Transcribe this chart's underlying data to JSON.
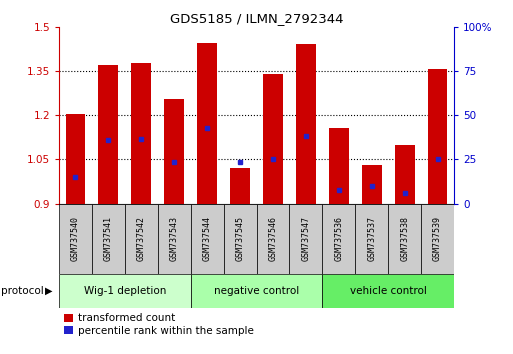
{
  "title": "GDS5185 / ILMN_2792344",
  "samples": [
    "GSM737540",
    "GSM737541",
    "GSM737542",
    "GSM737543",
    "GSM737544",
    "GSM737545",
    "GSM737546",
    "GSM737547",
    "GSM737536",
    "GSM737537",
    "GSM737538",
    "GSM737539"
  ],
  "bar_heights": [
    1.205,
    1.37,
    1.375,
    1.255,
    1.445,
    1.02,
    1.34,
    1.44,
    1.155,
    1.03,
    1.1,
    1.355
  ],
  "blue_positions": [
    0.99,
    1.115,
    1.12,
    1.04,
    1.155,
    1.04,
    1.05,
    1.13,
    0.945,
    0.96,
    0.935,
    1.05
  ],
  "bar_bottom": 0.9,
  "ylim_left": [
    0.9,
    1.5
  ],
  "ylim_right": [
    0,
    100
  ],
  "yticks_left": [
    0.9,
    1.05,
    1.2,
    1.35,
    1.5
  ],
  "yticks_right": [
    0,
    25,
    50,
    75,
    100
  ],
  "bar_color": "#cc0000",
  "blue_color": "#2222cc",
  "group_labels": [
    "Wig-1 depletion",
    "negative control",
    "vehicle control"
  ],
  "group_sizes": [
    4,
    4,
    4
  ],
  "group_colors": [
    "#ccffcc",
    "#aaffaa",
    "#66ee66"
  ],
  "protocol_label": "protocol",
  "legend_items": [
    "transformed count",
    "percentile rank within the sample"
  ],
  "grid_color": "#000000",
  "sample_box_color": "#cccccc",
  "right_axis_color": "#0000cc",
  "left_axis_color": "#cc0000",
  "grid_dotted_at": [
    1.05,
    1.2,
    1.35
  ],
  "bar_width": 0.6
}
